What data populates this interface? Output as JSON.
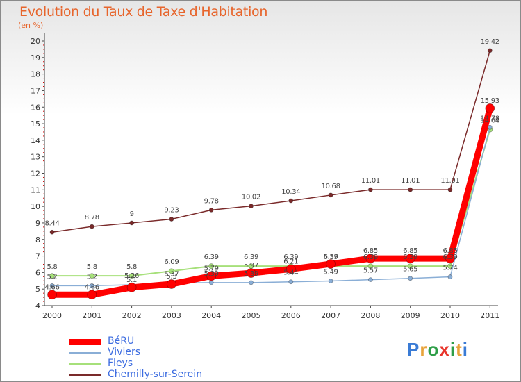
{
  "title": "Evolution du Taux de Taxe d'Habitation",
  "unit_label": "(en %)",
  "brand": {
    "text": "Proxiti",
    "letter_colors": [
      "#3a7bd5",
      "#e8a33a",
      "#2e9e48",
      "#e8352b",
      "#2e9e48",
      "#e8a33a",
      "#3a7bd5"
    ]
  },
  "chart_data": {
    "type": "line",
    "title": "Evolution du Taux de Taxe d'Habitation",
    "ylabel": "(en %)",
    "xlabel": "",
    "x": [
      "2000",
      "2001",
      "2002",
      "2003",
      "2004",
      "2005",
      "2006",
      "2007",
      "2008",
      "2009",
      "2010",
      "2011"
    ],
    "ylim": [
      4,
      20
    ],
    "yticks": [
      4,
      5,
      6,
      7,
      8,
      9,
      10,
      11,
      12,
      13,
      14,
      15,
      16,
      17,
      18,
      19,
      20
    ],
    "grid": false,
    "legend_position": "bottom-left",
    "series": [
      {
        "name": "Chemilly-sur-Serein",
        "color": "#7a2a2a",
        "values": [
          8.44,
          8.78,
          9,
          9.23,
          9.78,
          10.02,
          10.34,
          10.68,
          11.01,
          11.01,
          11.01,
          19.42
        ],
        "labels": [
          "8.44",
          "8.78",
          "9",
          "9.23",
          "9.78",
          "10.02",
          "10.34",
          "10.68",
          "11.01",
          "11.01",
          "11.01",
          "19.42"
        ]
      },
      {
        "name": "Fleys",
        "color": "#a6e07a",
        "values": [
          5.8,
          5.8,
          5.8,
          6.09,
          6.39,
          6.39,
          6.39,
          6.39,
          6.39,
          6.39,
          6.39,
          14.64
        ],
        "labels": [
          "5.8",
          "5.8",
          "5.8",
          "6.09",
          "6.39",
          "6.39",
          "6.39",
          "6.39",
          "6.39",
          "6.39",
          "6.39",
          "14.64"
        ]
      },
      {
        "name": "Viviers",
        "color": "#8aaed6",
        "values": [
          5.2,
          5.2,
          5.26,
          5.37,
          5.39,
          5.39,
          5.44,
          5.49,
          5.57,
          5.65,
          5.74,
          14.78
        ],
        "labels": [
          "5.2",
          "5.2",
          "5.26",
          "5.37",
          "5.39",
          "5.39",
          "5.44",
          "5.49",
          "5.57",
          "5.65",
          "5.74",
          "14.78"
        ]
      },
      {
        "name": "BéRU",
        "color": "#ff0000",
        "values": [
          4.66,
          4.66,
          5.1,
          5.3,
          5.79,
          5.97,
          6.21,
          6.52,
          6.85,
          6.85,
          6.85,
          15.93
        ],
        "labels": [
          "4.66",
          "4.66",
          "5.1",
          "5.3",
          "5.79",
          "5.97",
          "6.21",
          "6.52",
          "6.85",
          "6.85",
          "6.85",
          "15.93"
        ]
      }
    ],
    "legend_order": [
      "BéRU",
      "Viviers",
      "Fleys",
      "Chemilly-sur-Serein"
    ]
  }
}
